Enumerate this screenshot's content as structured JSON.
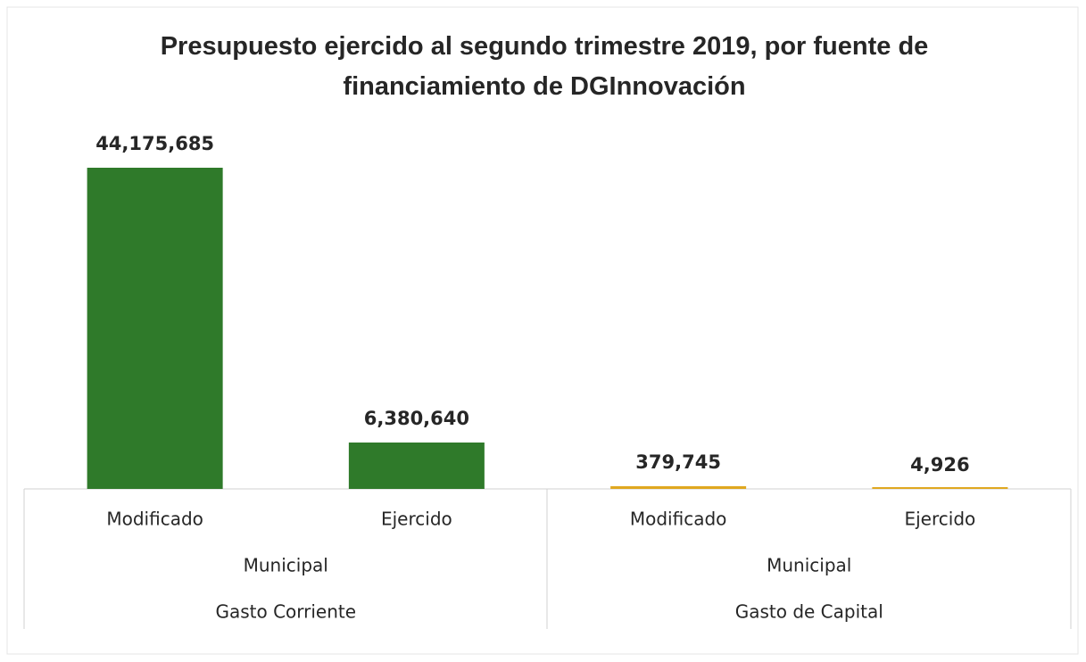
{
  "chart_data": {
    "type": "bar",
    "title": "Presupuesto ejercido al segundo trimestre 2019, por fuente de financiamiento de DGInnovación",
    "categories": [
      "Modificado",
      "Ejercido",
      "Modificado",
      "Ejercido"
    ],
    "values": [
      44175685,
      6380640,
      379745,
      4926
    ],
    "value_labels": [
      "44,175,685",
      "6,380,640",
      "379,745",
      "4,926"
    ],
    "colors": [
      "#2f7a2a",
      "#2f7a2a",
      "#e0a820",
      "#e0a820"
    ],
    "group_labels": [
      "Municipal",
      "Municipal"
    ],
    "outer_group_labels": [
      "Gasto Corriente",
      "Gasto de Capital"
    ]
  }
}
